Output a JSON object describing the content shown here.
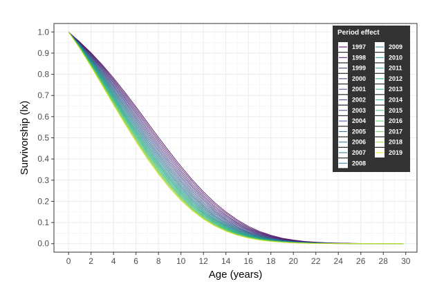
{
  "chart_data": {
    "type": "line",
    "xlabel": "Age (years)",
    "ylabel": "Survivorship (lx)",
    "xlim": [
      -1.3,
      31
    ],
    "ylim": [
      -0.04,
      1.04
    ],
    "x_ticks": [
      0,
      2,
      4,
      6,
      8,
      10,
      12,
      14,
      16,
      18,
      20,
      22,
      24,
      26,
      28,
      30
    ],
    "y_ticks": [
      0.0,
      0.1,
      0.2,
      0.3,
      0.4,
      0.5,
      0.6,
      0.7,
      0.8,
      0.9,
      1.0
    ],
    "x_tick_labels": [
      "0",
      "2",
      "4",
      "6",
      "8",
      "10",
      "12",
      "14",
      "16",
      "18",
      "20",
      "22",
      "24",
      "26",
      "28",
      "30"
    ],
    "y_tick_labels": [
      "0.0",
      "0.1",
      "0.2",
      "0.3",
      "0.4",
      "0.5",
      "0.6",
      "0.7",
      "0.8",
      "0.9",
      "1.0"
    ],
    "grid": true,
    "legend_title": "Period effect",
    "legend_position": "top-right",
    "x": [
      0,
      1,
      2,
      3,
      4,
      5,
      6,
      7,
      8,
      9,
      10,
      11,
      12,
      13,
      14,
      15,
      16,
      17,
      18,
      19,
      20,
      21,
      22,
      23,
      24,
      25,
      26,
      27,
      28,
      29,
      29.8
    ],
    "series": [
      {
        "name": "1997",
        "color": "#440154",
        "values": [
          1.0,
          0.953,
          0.902,
          0.845,
          0.783,
          0.716,
          0.646,
          0.574,
          0.502,
          0.432,
          0.365,
          0.302,
          0.245,
          0.194,
          0.15,
          0.113,
          0.082,
          0.058,
          0.04,
          0.026,
          0.017,
          0.011,
          0.007,
          0.004,
          0.003,
          0.002,
          0.001,
          0.001,
          0.001,
          0.0,
          0.0
        ]
      },
      {
        "name": "1998",
        "color": "#470e61",
        "values": [
          1.0,
          0.951,
          0.898,
          0.84,
          0.776,
          0.708,
          0.637,
          0.564,
          0.492,
          0.422,
          0.355,
          0.293,
          0.236,
          0.186,
          0.143,
          0.107,
          0.077,
          0.054,
          0.037,
          0.024,
          0.016,
          0.01,
          0.006,
          0.004,
          0.002,
          0.001,
          0.001,
          0.001,
          0.0,
          0.0,
          0.0
        ]
      },
      {
        "name": "1999",
        "color": "#481b6d",
        "values": [
          1.0,
          0.95,
          0.895,
          0.835,
          0.77,
          0.7,
          0.628,
          0.555,
          0.482,
          0.412,
          0.345,
          0.283,
          0.227,
          0.178,
          0.136,
          0.101,
          0.073,
          0.051,
          0.034,
          0.022,
          0.014,
          0.009,
          0.006,
          0.003,
          0.002,
          0.001,
          0.001,
          0.0,
          0.0,
          0.0,
          0.0
        ]
      },
      {
        "name": "2000",
        "color": "#482677",
        "values": [
          1.0,
          0.948,
          0.891,
          0.83,
          0.763,
          0.692,
          0.619,
          0.545,
          0.472,
          0.402,
          0.336,
          0.274,
          0.219,
          0.171,
          0.13,
          0.096,
          0.069,
          0.048,
          0.032,
          0.021,
          0.013,
          0.008,
          0.005,
          0.003,
          0.002,
          0.001,
          0.001,
          0.0,
          0.0,
          0.0,
          0.0
        ]
      },
      {
        "name": "2001",
        "color": "#46337e",
        "values": [
          1.0,
          0.947,
          0.888,
          0.825,
          0.757,
          0.685,
          0.611,
          0.536,
          0.462,
          0.392,
          0.326,
          0.266,
          0.211,
          0.164,
          0.124,
          0.091,
          0.065,
          0.045,
          0.03,
          0.019,
          0.012,
          0.007,
          0.004,
          0.003,
          0.002,
          0.001,
          0.001,
          0.0,
          0.0,
          0.0,
          0.0
        ]
      },
      {
        "name": "2002",
        "color": "#433d84",
        "values": [
          1.0,
          0.945,
          0.885,
          0.82,
          0.75,
          0.677,
          0.602,
          0.527,
          0.453,
          0.383,
          0.317,
          0.257,
          0.204,
          0.157,
          0.118,
          0.087,
          0.062,
          0.042,
          0.028,
          0.018,
          0.011,
          0.007,
          0.004,
          0.002,
          0.001,
          0.001,
          0.0,
          0.0,
          0.0,
          0.0,
          0.0
        ]
      },
      {
        "name": "2003",
        "color": "#3f4788",
        "values": [
          1.0,
          0.944,
          0.882,
          0.815,
          0.744,
          0.67,
          0.594,
          0.518,
          0.444,
          0.374,
          0.309,
          0.249,
          0.196,
          0.151,
          0.113,
          0.082,
          0.058,
          0.04,
          0.026,
          0.017,
          0.01,
          0.006,
          0.004,
          0.002,
          0.001,
          0.001,
          0.0,
          0.0,
          0.0,
          0.0,
          0.0
        ]
      },
      {
        "name": "2004",
        "color": "#3a538b",
        "values": [
          1.0,
          0.942,
          0.878,
          0.81,
          0.738,
          0.662,
          0.586,
          0.509,
          0.435,
          0.365,
          0.3,
          0.241,
          0.189,
          0.145,
          0.108,
          0.078,
          0.055,
          0.038,
          0.025,
          0.016,
          0.01,
          0.006,
          0.003,
          0.002,
          0.001,
          0.001,
          0.0,
          0.0,
          0.0,
          0.0,
          0.0
        ]
      },
      {
        "name": "2005",
        "color": "#355e8d",
        "values": [
          1.0,
          0.941,
          0.875,
          0.805,
          0.731,
          0.655,
          0.578,
          0.5,
          0.426,
          0.356,
          0.292,
          0.233,
          0.182,
          0.139,
          0.103,
          0.074,
          0.052,
          0.035,
          0.023,
          0.015,
          0.009,
          0.005,
          0.003,
          0.002,
          0.001,
          0.001,
          0.0,
          0.0,
          0.0,
          0.0,
          0.0
        ]
      },
      {
        "name": "2006",
        "color": "#31688e",
        "values": [
          1.0,
          0.939,
          0.872,
          0.8,
          0.725,
          0.648,
          0.57,
          0.492,
          0.418,
          0.348,
          0.284,
          0.226,
          0.176,
          0.133,
          0.098,
          0.071,
          0.05,
          0.034,
          0.022,
          0.014,
          0.008,
          0.005,
          0.003,
          0.002,
          0.001,
          0.0,
          0.0,
          0.0,
          0.0,
          0.0,
          0.0
        ]
      },
      {
        "name": "2007",
        "color": "#2c728e",
        "values": [
          1.0,
          0.938,
          0.869,
          0.795,
          0.719,
          0.641,
          0.562,
          0.484,
          0.41,
          0.34,
          0.276,
          0.219,
          0.17,
          0.128,
          0.094,
          0.067,
          0.047,
          0.032,
          0.021,
          0.013,
          0.008,
          0.005,
          0.003,
          0.002,
          0.001,
          0.0,
          0.0,
          0.0,
          0.0,
          0.0,
          0.0
        ]
      },
      {
        "name": "2008",
        "color": "#297b8e",
        "values": [
          1.0,
          0.936,
          0.866,
          0.791,
          0.713,
          0.634,
          0.554,
          0.476,
          0.402,
          0.332,
          0.269,
          0.212,
          0.164,
          0.123,
          0.09,
          0.064,
          0.045,
          0.03,
          0.02,
          0.012,
          0.008,
          0.005,
          0.003,
          0.001,
          0.001,
          0.0,
          0.0,
          0.0,
          0.0,
          0.0,
          0.0
        ]
      },
      {
        "name": "2009",
        "color": "#25858e",
        "values": [
          1.0,
          0.935,
          0.863,
          0.786,
          0.707,
          0.627,
          0.547,
          0.468,
          0.394,
          0.325,
          0.262,
          0.206,
          0.158,
          0.118,
          0.086,
          0.061,
          0.042,
          0.029,
          0.019,
          0.012,
          0.007,
          0.004,
          0.002,
          0.001,
          0.001,
          0.0,
          0.0,
          0.0,
          0.0,
          0.0,
          0.0
        ]
      },
      {
        "name": "2010",
        "color": "#218f8d",
        "values": [
          1.0,
          0.933,
          0.86,
          0.782,
          0.701,
          0.62,
          0.539,
          0.461,
          0.386,
          0.317,
          0.255,
          0.2,
          0.153,
          0.114,
          0.083,
          0.059,
          0.04,
          0.027,
          0.018,
          0.011,
          0.007,
          0.004,
          0.002,
          0.001,
          0.001,
          0.0,
          0.0,
          0.0,
          0.0,
          0.0,
          0.0
        ]
      },
      {
        "name": "2011",
        "color": "#1f998a",
        "values": [
          1.0,
          0.932,
          0.857,
          0.777,
          0.696,
          0.613,
          0.532,
          0.453,
          0.379,
          0.31,
          0.248,
          0.194,
          0.148,
          0.11,
          0.079,
          0.056,
          0.038,
          0.026,
          0.017,
          0.011,
          0.006,
          0.004,
          0.002,
          0.001,
          0.001,
          0.0,
          0.0,
          0.0,
          0.0,
          0.0,
          0.0
        ]
      },
      {
        "name": "2012",
        "color": "#20a386",
        "values": [
          1.0,
          0.931,
          0.854,
          0.773,
          0.69,
          0.607,
          0.525,
          0.446,
          0.372,
          0.303,
          0.242,
          0.188,
          0.143,
          0.106,
          0.076,
          0.053,
          0.036,
          0.024,
          0.016,
          0.01,
          0.006,
          0.004,
          0.002,
          0.001,
          0.001,
          0.0,
          0.0,
          0.0,
          0.0,
          0.0,
          0.0
        ]
      },
      {
        "name": "2013",
        "color": "#26ad81",
        "values": [
          1.0,
          0.929,
          0.852,
          0.769,
          0.685,
          0.601,
          0.518,
          0.439,
          0.365,
          0.297,
          0.236,
          0.183,
          0.139,
          0.102,
          0.073,
          0.051,
          0.035,
          0.023,
          0.015,
          0.009,
          0.006,
          0.003,
          0.002,
          0.001,
          0.001,
          0.0,
          0.0,
          0.0,
          0.0,
          0.0,
          0.0
        ]
      },
      {
        "name": "2014",
        "color": "#32b67a",
        "values": [
          1.0,
          0.928,
          0.849,
          0.765,
          0.68,
          0.595,
          0.512,
          0.432,
          0.358,
          0.29,
          0.23,
          0.178,
          0.134,
          0.099,
          0.07,
          0.049,
          0.033,
          0.022,
          0.014,
          0.009,
          0.005,
          0.003,
          0.002,
          0.001,
          0.0,
          0.0,
          0.0,
          0.0,
          0.0,
          0.0,
          0.0
        ]
      },
      {
        "name": "2015",
        "color": "#3fbc73",
        "values": [
          1.0,
          0.927,
          0.846,
          0.761,
          0.675,
          0.589,
          0.505,
          0.426,
          0.352,
          0.284,
          0.224,
          0.173,
          0.13,
          0.095,
          0.068,
          0.047,
          0.032,
          0.021,
          0.013,
          0.008,
          0.005,
          0.003,
          0.002,
          0.001,
          0.0,
          0.0,
          0.0,
          0.0,
          0.0,
          0.0,
          0.0
        ]
      },
      {
        "name": "2016",
        "color": "#56c667",
        "values": [
          1.0,
          0.925,
          0.844,
          0.757,
          0.67,
          0.583,
          0.499,
          0.419,
          0.345,
          0.278,
          0.219,
          0.168,
          0.126,
          0.092,
          0.065,
          0.045,
          0.03,
          0.02,
          0.013,
          0.008,
          0.005,
          0.003,
          0.002,
          0.001,
          0.0,
          0.0,
          0.0,
          0.0,
          0.0,
          0.0,
          0.0
        ]
      },
      {
        "name": "2017",
        "color": "#75d054",
        "values": [
          1.0,
          0.924,
          0.841,
          0.753,
          0.665,
          0.577,
          0.493,
          0.413,
          0.339,
          0.273,
          0.214,
          0.164,
          0.122,
          0.089,
          0.063,
          0.043,
          0.029,
          0.019,
          0.012,
          0.007,
          0.004,
          0.003,
          0.001,
          0.001,
          0.0,
          0.0,
          0.0,
          0.0,
          0.0,
          0.0,
          0.0
        ]
      },
      {
        "name": "2018",
        "color": "#95d840",
        "values": [
          1.0,
          0.923,
          0.839,
          0.75,
          0.66,
          0.572,
          0.487,
          0.407,
          0.334,
          0.267,
          0.209,
          0.16,
          0.119,
          0.086,
          0.061,
          0.042,
          0.028,
          0.018,
          0.011,
          0.007,
          0.004,
          0.002,
          0.001,
          0.001,
          0.0,
          0.0,
          0.0,
          0.0,
          0.0,
          0.0,
          0.0
        ]
      },
      {
        "name": "2019",
        "color": "#dce319",
        "values": [
          1.0,
          0.922,
          0.836,
          0.746,
          0.656,
          0.567,
          0.481,
          0.401,
          0.328,
          0.262,
          0.204,
          0.156,
          0.116,
          0.084,
          0.059,
          0.04,
          0.027,
          0.017,
          0.011,
          0.007,
          0.004,
          0.002,
          0.001,
          0.001,
          0.0,
          0.0,
          0.0,
          0.0,
          0.0,
          0.0,
          0.0
        ]
      }
    ]
  }
}
